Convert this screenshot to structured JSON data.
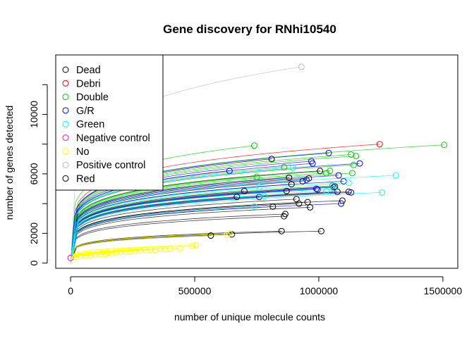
{
  "chart_data": {
    "type": "scatter",
    "title": "Gene discovery for RNhi10540",
    "xlabel": "number of unique molecule counts",
    "ylabel": "number of genes detected",
    "xlim": [
      -60000,
      1560000
    ],
    "ylim": [
      -350,
      14000
    ],
    "xticks": [
      0,
      500000,
      1000000,
      1500000
    ],
    "xtick_labels": [
      "0",
      "500000",
      "1000000",
      "1500000"
    ],
    "yticks": [
      0,
      2000,
      6000,
      10000
    ],
    "ytick_labels": [
      "0",
      "2000",
      "6000",
      "10000"
    ],
    "y_minor_ticks": [
      4000,
      8000,
      12000
    ],
    "grid": false,
    "legend_position": "top-left",
    "curve_shape_exponent": 0.18,
    "series": [
      {
        "name": "Dead",
        "color": "#000000",
        "points": [
          [
            565000,
            1850
          ],
          [
            650000,
            1930
          ],
          [
            670000,
            4450
          ],
          [
            700000,
            4850
          ],
          [
            810000,
            7000
          ],
          [
            815000,
            3800
          ],
          [
            850000,
            2150
          ],
          [
            860000,
            3150
          ],
          [
            865000,
            3300
          ],
          [
            870000,
            4850
          ],
          [
            880000,
            5750
          ],
          [
            890000,
            5300
          ],
          [
            910000,
            4300
          ],
          [
            920000,
            4000
          ],
          [
            935000,
            5500
          ],
          [
            955000,
            4100
          ],
          [
            960000,
            5700
          ],
          [
            965000,
            3750
          ],
          [
            1005000,
            6200
          ],
          [
            1010000,
            2150
          ],
          [
            1065000,
            5150
          ],
          [
            1075000,
            4800
          ],
          [
            1095000,
            4200
          ],
          [
            1120000,
            4800
          ]
        ]
      },
      {
        "name": "Debri",
        "color": "#ff0000",
        "points": [
          [
            1245000,
            8000
          ]
        ]
      },
      {
        "name": "Double",
        "color": "#00cd00",
        "points": [
          [
            740000,
            7900
          ],
          [
            750000,
            5800
          ],
          [
            860000,
            6450
          ],
          [
            1030000,
            6050
          ],
          [
            1045000,
            6200
          ],
          [
            1055000,
            5200
          ],
          [
            1130000,
            7300
          ],
          [
            1135000,
            6050
          ],
          [
            1140000,
            6600
          ],
          [
            1150000,
            7200
          ],
          [
            1505000,
            7950
          ]
        ]
      },
      {
        "name": "G/R",
        "color": "#0000ff",
        "points": [
          [
            640000,
            6200
          ],
          [
            760000,
            4450
          ],
          [
            950000,
            5600
          ],
          [
            970000,
            6850
          ],
          [
            975000,
            6700
          ],
          [
            990000,
            5000
          ],
          [
            995000,
            4950
          ],
          [
            1040000,
            7400
          ],
          [
            1060000,
            5100
          ],
          [
            1080000,
            5900
          ],
          [
            1090000,
            4000
          ],
          [
            1100000,
            5500
          ],
          [
            1130000,
            4750
          ],
          [
            1165000,
            6700
          ]
        ]
      },
      {
        "name": "Green",
        "color": "#00ffff",
        "points": [
          [
            740000,
            3800
          ],
          [
            760000,
            5100
          ],
          [
            780000,
            4500
          ],
          [
            895000,
            6400
          ],
          [
            1030000,
            4850
          ],
          [
            1060000,
            5000
          ],
          [
            1120000,
            5400
          ],
          [
            1255000,
            4750
          ],
          [
            1310000,
            5900
          ]
        ]
      },
      {
        "name": "Negative control",
        "color": "#ff00ff",
        "points": [
          [
            0,
            350
          ]
        ]
      },
      {
        "name": "No",
        "color": "#ffff00",
        "points": [
          [
            20000,
            420
          ],
          [
            40000,
            480
          ],
          [
            60000,
            500
          ],
          [
            80000,
            530
          ],
          [
            100000,
            560
          ],
          [
            120000,
            600
          ],
          [
            140000,
            620
          ],
          [
            150000,
            700
          ],
          [
            165000,
            650
          ],
          [
            180000,
            720
          ],
          [
            200000,
            740
          ],
          [
            220000,
            760
          ],
          [
            240000,
            800
          ],
          [
            260000,
            820
          ],
          [
            280000,
            840
          ],
          [
            300000,
            870
          ],
          [
            320000,
            900
          ],
          [
            340000,
            880
          ],
          [
            360000,
            960
          ],
          [
            380000,
            950
          ],
          [
            400000,
            980
          ],
          [
            440000,
            1000
          ],
          [
            490000,
            1150
          ],
          [
            505000,
            1200
          ],
          [
            630000,
            1900
          ],
          [
            640000,
            2000
          ]
        ]
      },
      {
        "name": "Positive control",
        "color": "#bebebe",
        "points": [
          [
            930000,
            13200
          ]
        ]
      },
      {
        "name": "Red",
        "color": "#000000",
        "points": []
      }
    ]
  }
}
